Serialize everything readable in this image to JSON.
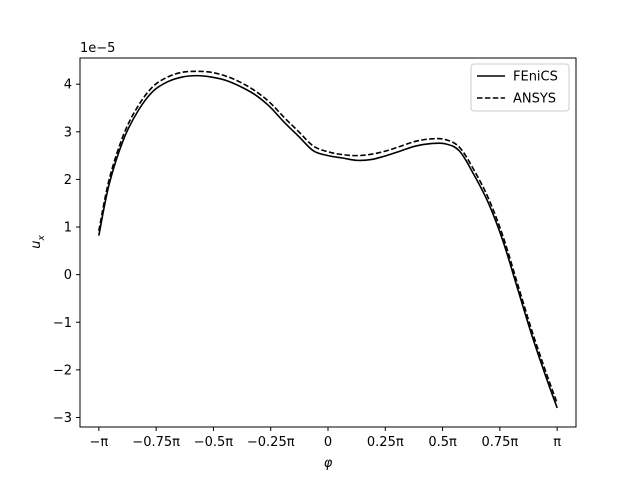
{
  "chart_data": {
    "type": "line",
    "xlabel": "φ",
    "ylabel": "u_x",
    "ylabel_base": "u",
    "ylabel_sub": "x",
    "offset_label": "1e−5",
    "xlim": [
      -3.4,
      3.4
    ],
    "ylim": [
      -3.2,
      4.55
    ],
    "y_scale_multiplier": 1e-05,
    "x_ticks": [
      {
        "value": -3.14159,
        "label": "−π"
      },
      {
        "value": -2.35619,
        "label": "−0.75π"
      },
      {
        "value": -1.5708,
        "label": "−0.5π"
      },
      {
        "value": -0.7854,
        "label": "−0.25π"
      },
      {
        "value": 0,
        "label": "0"
      },
      {
        "value": 0.7854,
        "label": "0.25π"
      },
      {
        "value": 1.5708,
        "label": "0.5π"
      },
      {
        "value": 2.35619,
        "label": "0.75π"
      },
      {
        "value": 3.14159,
        "label": "π"
      }
    ],
    "y_ticks": [
      {
        "value": -3,
        "label": "−3"
      },
      {
        "value": -2,
        "label": "−2"
      },
      {
        "value": -1,
        "label": "−1"
      },
      {
        "value": 0,
        "label": "0"
      },
      {
        "value": 1,
        "label": "1"
      },
      {
        "value": 2,
        "label": "2"
      },
      {
        "value": 3,
        "label": "3"
      },
      {
        "value": 4,
        "label": "4"
      }
    ],
    "grid": false,
    "legend_position": "top-right",
    "series": [
      {
        "name": "FEniCS",
        "style": "solid",
        "color": "#000000",
        "x": [
          -3.142,
          -3.0,
          -2.8,
          -2.6,
          -2.4,
          -2.2,
          -2.0,
          -1.8,
          -1.6,
          -1.4,
          -1.2,
          -1.0,
          -0.8,
          -0.6,
          -0.4,
          -0.2,
          0.0,
          0.2,
          0.4,
          0.6,
          0.8,
          1.0,
          1.2,
          1.4,
          1.6,
          1.8,
          2.0,
          2.2,
          2.4,
          2.6,
          2.8,
          3.0,
          3.142
        ],
        "y": [
          0.82,
          1.9,
          2.85,
          3.45,
          3.85,
          4.05,
          4.15,
          4.18,
          4.15,
          4.08,
          3.95,
          3.78,
          3.53,
          3.2,
          2.9,
          2.6,
          2.5,
          2.45,
          2.4,
          2.42,
          2.5,
          2.6,
          2.7,
          2.75,
          2.75,
          2.6,
          2.1,
          1.5,
          0.7,
          -0.3,
          -1.3,
          -2.2,
          -2.8
        ]
      },
      {
        "name": "ANSYS",
        "style": "dashed",
        "color": "#000000",
        "x": [
          -3.142,
          -3.0,
          -2.8,
          -2.6,
          -2.4,
          -2.2,
          -2.0,
          -1.8,
          -1.6,
          -1.4,
          -1.2,
          -1.0,
          -0.8,
          -0.6,
          -0.4,
          -0.2,
          0.0,
          0.2,
          0.4,
          0.6,
          0.8,
          1.0,
          1.2,
          1.4,
          1.6,
          1.8,
          2.0,
          2.2,
          2.4,
          2.6,
          2.8,
          3.0,
          3.142
        ],
        "y": [
          0.92,
          2.0,
          2.95,
          3.55,
          3.95,
          4.15,
          4.25,
          4.27,
          4.25,
          4.17,
          4.04,
          3.86,
          3.62,
          3.3,
          3.0,
          2.7,
          2.58,
          2.52,
          2.5,
          2.53,
          2.6,
          2.7,
          2.8,
          2.85,
          2.84,
          2.68,
          2.2,
          1.6,
          0.8,
          -0.2,
          -1.2,
          -2.1,
          -2.7
        ]
      }
    ]
  }
}
